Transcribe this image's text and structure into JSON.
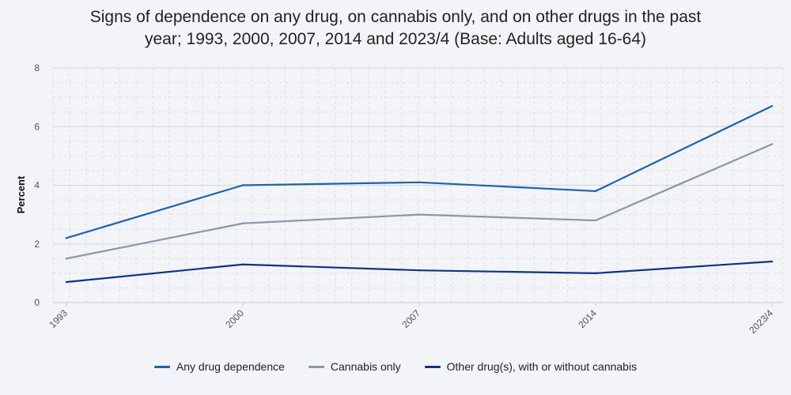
{
  "chart_data": {
    "type": "line",
    "title_lines": [
      "Signs of dependence on any drug, on cannabis only, and on other drugs in the past",
      "year; 1993, 2000, 2007, 2014 and 2023/4 (Base: Adults aged 16-64)"
    ],
    "xlabel": "",
    "ylabel": "Percent",
    "categories": [
      "1993",
      "2000",
      "2007",
      "2014",
      "2023/4"
    ],
    "ylim": [
      0,
      8
    ],
    "yticks": [
      0,
      2,
      4,
      6,
      8
    ],
    "grid": true,
    "legend_position": "bottom",
    "series": [
      {
        "name": "Any drug dependence",
        "color": "#1f63a8",
        "values": [
          2.2,
          4.0,
          4.1,
          3.8,
          6.7
        ]
      },
      {
        "name": "Cannabis only",
        "color": "#8a97a6",
        "values": [
          1.5,
          2.7,
          3.0,
          2.8,
          5.4
        ]
      },
      {
        "name": "Other drug(s), with or without cannabis",
        "color": "#0f3580",
        "values": [
          0.7,
          1.3,
          1.1,
          1.0,
          1.4
        ]
      }
    ]
  }
}
